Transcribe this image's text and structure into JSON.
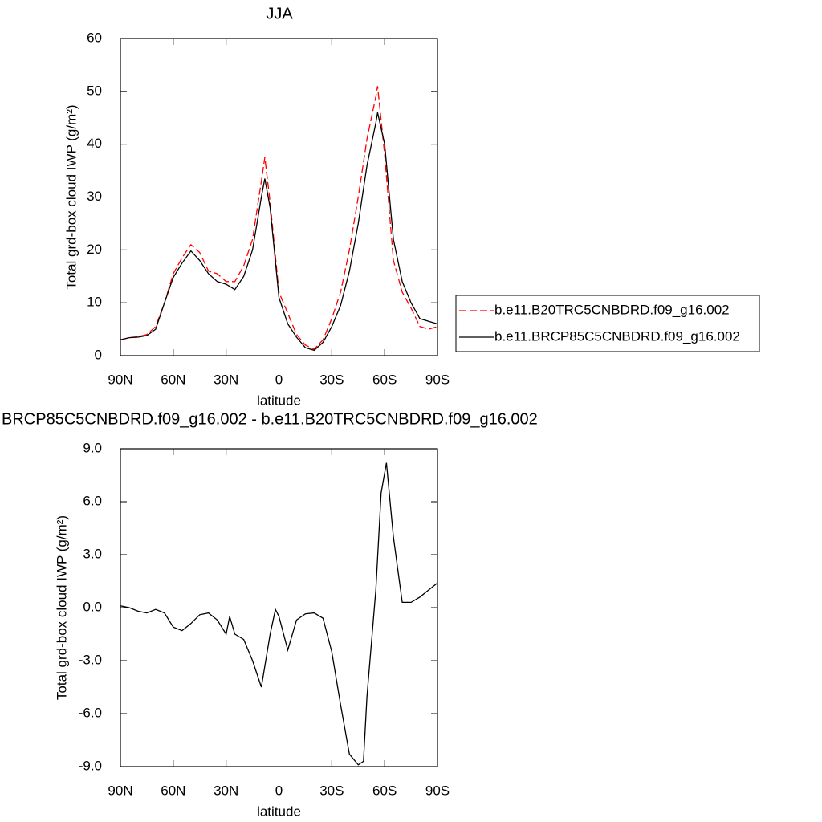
{
  "chart_data": [
    {
      "type": "line",
      "title": "JJA",
      "x_label": "latitude",
      "y_label": "Total grd-box cloud IWP (g/m²)",
      "x": [
        90,
        85,
        80,
        75,
        70,
        65,
        60,
        55,
        50,
        45,
        40,
        35,
        30,
        25,
        20,
        15,
        10,
        8,
        5,
        0,
        -5,
        -10,
        -15,
        -20,
        -25,
        -30,
        -35,
        -40,
        -45,
        -50,
        -55,
        -56,
        -60,
        -65,
        -70,
        -75,
        -80,
        -85,
        -90
      ],
      "series": [
        {
          "name": "b.e11.B20TRC5CNBDRD.f09_g16.002",
          "color": "#ff0000",
          "style": "dashed",
          "values": [
            3,
            3.4,
            3.6,
            4,
            5.5,
            10,
            15.5,
            18.5,
            21,
            19.5,
            16,
            15.5,
            14,
            14,
            17,
            22,
            33,
            37.5,
            29,
            12,
            8,
            4,
            2,
            1.2,
            3,
            7,
            12,
            20,
            30,
            41,
            49,
            51,
            38,
            18,
            12,
            9,
            5.5,
            5,
            5.5
          ]
        },
        {
          "name": "b.e11.BRCP85C5CNBDRD.f09_g16.002",
          "color": "#000000",
          "style": "solid",
          "values": [
            3,
            3.4,
            3.5,
            3.8,
            5,
            10,
            14.8,
            17.5,
            19.8,
            18,
            15.5,
            14,
            13.5,
            12.5,
            15,
            20,
            30,
            33.5,
            28,
            11,
            6,
            3.5,
            1.5,
            1,
            2.5,
            5.5,
            9.5,
            16,
            25,
            36,
            44,
            46,
            40,
            22,
            14,
            10,
            7,
            6.5,
            6
          ]
        }
      ],
      "xlim": [
        90,
        -90
      ],
      "xticks": [
        {
          "value": 90,
          "label": "90N"
        },
        {
          "value": 60,
          "label": "60N"
        },
        {
          "value": 30,
          "label": "30N"
        },
        0,
        {
          "value": -30,
          "label": "30S"
        },
        {
          "value": -60,
          "label": "60S"
        },
        {
          "value": -90,
          "label": "90S"
        }
      ],
      "ylim": [
        0,
        60
      ],
      "yticks": [
        0,
        10,
        20,
        30,
        40,
        50,
        60
      ],
      "legend": "right"
    },
    {
      "type": "line",
      "title": "BRCP85C5CNBDRD.f09_g16.002 - b.e11.B20TRC5CNBDRD.f09_g16.002",
      "x_label": "latitude",
      "y_label": "Total grd-box cloud IWP (g/m²)",
      "x": [
        90,
        85,
        80,
        75,
        70,
        65,
        60,
        55,
        50,
        45,
        40,
        35,
        30,
        28,
        25,
        20,
        15,
        10,
        5,
        2,
        0,
        -5,
        -10,
        -15,
        -20,
        -25,
        -30,
        -35,
        -40,
        -45,
        -48,
        -50,
        -55,
        -58,
        -61,
        -65,
        -70,
        -75,
        -80,
        -85,
        -90
      ],
      "series": [
        {
          "color": "#000000",
          "style": "solid",
          "values": [
            0.1,
            0,
            -0.2,
            -0.3,
            -0.1,
            -0.3,
            -1.1,
            -1.3,
            -0.9,
            -0.4,
            -0.3,
            -0.7,
            -1.5,
            -0.5,
            -1.5,
            -1.8,
            -3,
            -4.5,
            -1.5,
            -0.1,
            -0.5,
            -2.4,
            -0.7,
            -0.35,
            -0.3,
            -0.6,
            -2.5,
            -5.5,
            -8.3,
            -8.9,
            -8.7,
            -5,
            1,
            6.5,
            8.2,
            4,
            0.3,
            0.3,
            0.6,
            1,
            1.4
          ]
        }
      ],
      "xlim": [
        90,
        -90
      ],
      "xticks": [
        {
          "value": 90,
          "label": "90N"
        },
        {
          "value": 60,
          "label": "60N"
        },
        {
          "value": 30,
          "label": "30N"
        },
        0,
        {
          "value": -30,
          "label": "30S"
        },
        {
          "value": -60,
          "label": "60S"
        },
        {
          "value": -90,
          "label": "90S"
        }
      ],
      "ylim": [
        -9,
        9
      ],
      "yticks": [
        {
          "value": -9,
          "label": "-9.0"
        },
        {
          "value": -6,
          "label": "-6.0"
        },
        {
          "value": -3,
          "label": "-3.0"
        },
        {
          "value": 0,
          "label": "0.0"
        },
        {
          "value": 3,
          "label": "3.0"
        },
        {
          "value": 6,
          "label": "6.0"
        },
        {
          "value": 9,
          "label": "9.0"
        }
      ]
    }
  ]
}
